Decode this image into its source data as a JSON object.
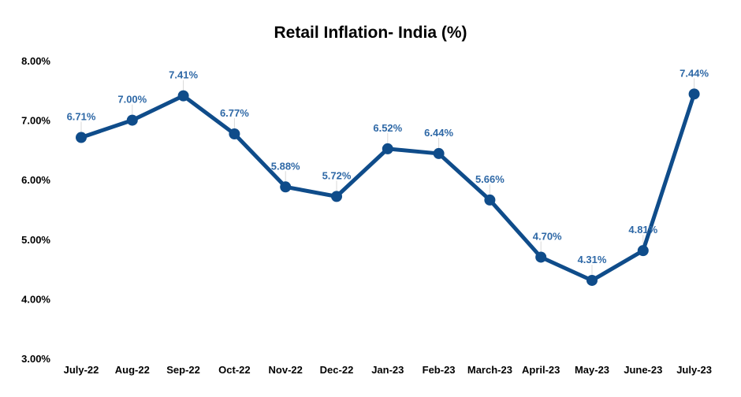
{
  "chart_data": {
    "type": "line",
    "title": "Retail Inflation- India (%)",
    "xlabel": "",
    "ylabel": "",
    "categories": [
      "July-22",
      "Aug-22",
      "Sep-22",
      "Oct-22",
      "Nov-22",
      "Dec-22",
      "Jan-23",
      "Feb-23",
      "March-23",
      "April-23",
      "May-23",
      "June-23",
      "July-23"
    ],
    "series": [
      {
        "values": [
          6.71,
          7.0,
          7.41,
          6.77,
          5.88,
          5.72,
          6.52,
          6.44,
          5.66,
          4.7,
          4.31,
          4.81,
          7.44
        ],
        "data_labels": [
          "6.71%",
          "7.00%",
          "7.41%",
          "6.77%",
          "5.88%",
          "5.72%",
          "6.52%",
          "6.44%",
          "5.66%",
          "4.70%",
          "4.31%",
          "4.81%",
          "7.44%"
        ]
      }
    ],
    "ylim": [
      3,
      8
    ],
    "yticks": [
      "3.00%",
      "4.00%",
      "5.00%",
      "6.00%",
      "7.00%",
      "8.00%"
    ],
    "grid": false,
    "legend": "none",
    "colors": {
      "line": "#0f4c8a",
      "label": "#2e68a6",
      "leader": "#d9d9d9"
    }
  }
}
